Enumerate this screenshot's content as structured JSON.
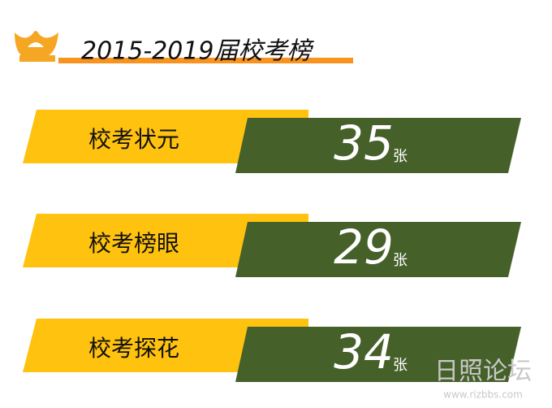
{
  "header": {
    "title": "2015-2019届校考榜"
  },
  "rows": [
    {
      "label": "校考状元",
      "count": "35",
      "unit": "张"
    },
    {
      "label": "校考榜眼",
      "count": "29",
      "unit": "张"
    },
    {
      "label": "校考探花",
      "count": "34",
      "unit": "张"
    }
  ],
  "watermark": {
    "name": "日照论坛",
    "url": "www.rizbbs.com"
  }
}
